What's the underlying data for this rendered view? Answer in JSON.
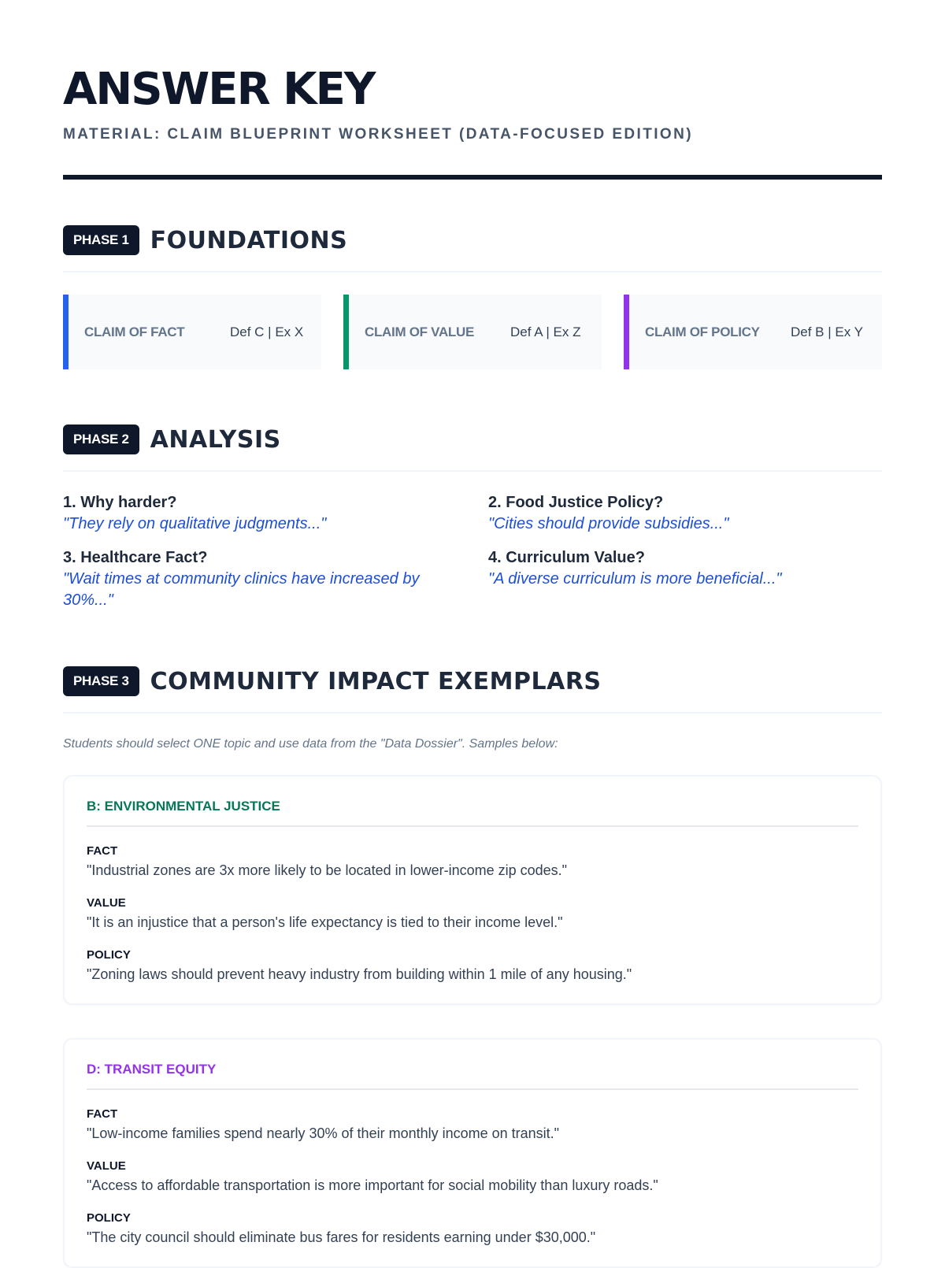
{
  "header": {
    "title": "ANSWER KEY",
    "subtitle": "MATERIAL: CLAIM BLUEPRINT WORKSHEET (DATA-FOCUSED EDITION)"
  },
  "phase1": {
    "badge": "PHASE 1",
    "title": "FOUNDATIONS",
    "cards": [
      {
        "label": "CLAIM OF FACT",
        "answer": "Def C | Ex X",
        "color": "#2563eb"
      },
      {
        "label": "CLAIM OF VALUE",
        "answer": "Def A | Ex Z",
        "color": "#059669"
      },
      {
        "label": "CLAIM OF POLICY",
        "answer": "Def B | Ex Y",
        "color": "#9333ea"
      }
    ]
  },
  "phase2": {
    "badge": "PHASE 2",
    "title": "ANALYSIS",
    "questions": [
      {
        "q": "1. Why harder?",
        "a": "\"They rely on qualitative judgments...\""
      },
      {
        "q": "2. Food Justice Policy?",
        "a": "\"Cities should provide subsidies...\""
      },
      {
        "q": "3. Healthcare Fact?",
        "a": "\"Wait times at community clinics have increased by 30%...\""
      },
      {
        "q": "4. Curriculum Value?",
        "a": "\"A diverse curriculum is more beneficial...\""
      }
    ]
  },
  "phase3": {
    "badge": "PHASE 3",
    "title": "COMMUNITY IMPACT EXEMPLARS",
    "note": "Students should select ONE topic and use data from the \"Data Dossier\". Samples below:",
    "exemplars": [
      {
        "title": "B: ENVIRONMENTAL JUSTICE",
        "color": "#047857",
        "items": [
          {
            "k": "FACT",
            "v": "\"Industrial zones are 3x more likely to be located in lower-income zip codes.\""
          },
          {
            "k": "VALUE",
            "v": "\"It is an injustice that a person's life expectancy is tied to their income level.\""
          },
          {
            "k": "POLICY",
            "v": "\"Zoning laws should prevent heavy industry from building within 1 mile of any housing.\""
          }
        ]
      },
      {
        "title": "D: TRANSIT EQUITY",
        "color": "#9333ea",
        "items": [
          {
            "k": "FACT",
            "v": "\"Low-income families spend nearly 30% of their monthly income on transit.\""
          },
          {
            "k": "VALUE",
            "v": "\"Access to affordable transportation is more important for social mobility than luxury roads.\""
          },
          {
            "k": "POLICY",
            "v": "\"The city council should eliminate bus fares for residents earning under $30,000.\""
          }
        ]
      }
    ]
  }
}
